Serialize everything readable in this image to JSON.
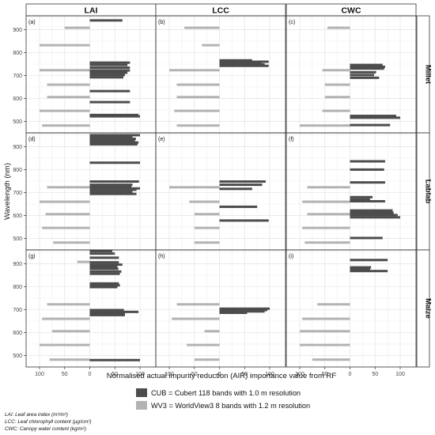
{
  "chart_data": {
    "type": "bar",
    "orientation": "horizontal",
    "xlabel": "Normalised actual impurity reduction (AIR) importance value from RF",
    "ylabel": "Wavelength (nm)",
    "columns": [
      "LAI",
      "LCC",
      "CWC"
    ],
    "rows": [
      "Millet",
      "Lablab",
      "Maize"
    ],
    "ylim": [
      450,
      960
    ],
    "yticks": [
      500,
      600,
      700,
      800,
      900
    ],
    "xticks_left": [
      "100",
      "50",
      "0"
    ],
    "xticks_right": [
      "50",
      "100"
    ],
    "panel_labels": [
      "(a)",
      "(b)",
      "(c)",
      "(d)",
      "(e)",
      "(f)",
      "(g)",
      "(h)",
      "(i)"
    ],
    "legend": [
      {
        "key": "cub",
        "label": "CUB = Cubert 118 bands with 1.0 m resolution",
        "color": "#4d4d4d"
      },
      {
        "key": "wv3",
        "label": "WV3 = WorldView3 8 bands with 1.2 m resolution",
        "color": "#b3b3b3"
      }
    ],
    "footnotes": [
      "LAI: Leaf area index (m²/m²)",
      "LCC: Leaf chlorophyll content (µg/cm²)",
      "CWC: Canopy water content (kg/m²)"
    ],
    "panels": [
      {
        "label": "(a)",
        "row": "Millet",
        "col": "LAI",
        "cub": [
          [
            522,
            100
          ],
          [
            528,
            97
          ],
          [
            584,
            80
          ],
          [
            632,
            80
          ],
          [
            692,
            67
          ],
          [
            702,
            70
          ],
          [
            712,
            75
          ],
          [
            722,
            80
          ],
          [
            734,
            80
          ],
          [
            746,
            75
          ],
          [
            756,
            80
          ],
          [
            940,
            65
          ]
        ],
        "wv3": [
          [
            482,
            95
          ],
          [
            546,
            100
          ],
          [
            606,
            85
          ],
          [
            660,
            85
          ],
          [
            723,
            100
          ],
          [
            832,
            100
          ],
          [
            908,
            50
          ]
        ]
      },
      {
        "label": "(b)",
        "row": "Millet",
        "col": "LCC",
        "cub": [
          [
            742,
            98
          ],
          [
            748,
            90
          ],
          [
            754,
            84
          ],
          [
            760,
            98
          ],
          [
            766,
            65
          ]
        ],
        "wv3": [
          [
            482,
            85
          ],
          [
            546,
            90
          ],
          [
            606,
            85
          ],
          [
            660,
            85
          ],
          [
            723,
            100
          ],
          [
            832,
            35
          ],
          [
            908,
            70
          ]
        ]
      },
      {
        "label": "(c)",
        "row": "Millet",
        "col": "CWC",
        "cub": [
          [
            484,
            80
          ],
          [
            516,
            100
          ],
          [
            524,
            92
          ],
          [
            690,
            58
          ],
          [
            702,
            48
          ],
          [
            714,
            52
          ],
          [
            730,
            68
          ],
          [
            738,
            70
          ],
          [
            746,
            65
          ]
        ],
        "wv3": [
          [
            482,
            100
          ],
          [
            546,
            55
          ],
          [
            606,
            50
          ],
          [
            660,
            50
          ],
          [
            723,
            55
          ],
          [
            908,
            45
          ]
        ]
      },
      {
        "label": "(d)",
        "row": "Lablab",
        "col": "LAI",
        "cub": [
          [
            694,
            93
          ],
          [
            702,
            85
          ],
          [
            712,
            93
          ],
          [
            718,
            100
          ],
          [
            726,
            83
          ],
          [
            734,
            85
          ],
          [
            748,
            98
          ],
          [
            830,
            100
          ],
          [
            910,
            95
          ],
          [
            918,
            97
          ],
          [
            926,
            90
          ],
          [
            934,
            92
          ],
          [
            942,
            85
          ],
          [
            950,
            100
          ]
        ],
        "wv3": [
          [
            482,
            73
          ],
          [
            546,
            95
          ],
          [
            606,
            88
          ],
          [
            660,
            100
          ],
          [
            723,
            85
          ]
        ]
      },
      {
        "label": "(e)",
        "row": "Lablab",
        "col": "LCC",
        "cub": [
          [
            578,
            98
          ],
          [
            638,
            75
          ],
          [
            716,
            65
          ],
          [
            734,
            85
          ],
          [
            748,
            92
          ]
        ],
        "wv3": [
          [
            482,
            50
          ],
          [
            546,
            50
          ],
          [
            606,
            50
          ],
          [
            660,
            60
          ],
          [
            723,
            100
          ]
        ]
      },
      {
        "label": "(f)",
        "row": "Lablab",
        "col": "CWC",
        "cub": [
          [
            502,
            65
          ],
          [
            592,
            100
          ],
          [
            602,
            95
          ],
          [
            612,
            87
          ],
          [
            622,
            85
          ],
          [
            662,
            70
          ],
          [
            670,
            40
          ],
          [
            680,
            45
          ],
          [
            744,
            70
          ],
          [
            800,
            68
          ],
          [
            836,
            70
          ]
        ],
        "wv3": [
          [
            482,
            90
          ],
          [
            546,
            95
          ],
          [
            606,
            85
          ],
          [
            660,
            95
          ],
          [
            723,
            85
          ]
        ]
      },
      {
        "label": "(g)",
        "row": "Maize",
        "col": "LAI",
        "cub": [
          [
            480,
            100
          ],
          [
            676,
            70
          ],
          [
            684,
            70
          ],
          [
            690,
            97
          ],
          [
            698,
            68
          ],
          [
            798,
            55
          ],
          [
            806,
            60
          ],
          [
            814,
            58
          ],
          [
            856,
            60
          ],
          [
            866,
            63
          ],
          [
            878,
            57
          ],
          [
            886,
            55
          ],
          [
            896,
            65
          ],
          [
            906,
            58
          ],
          [
            926,
            58
          ],
          [
            944,
            50
          ],
          [
            955,
            45
          ]
        ],
        "wv3": [
          [
            482,
            80
          ],
          [
            546,
            100
          ],
          [
            606,
            75
          ],
          [
            660,
            95
          ],
          [
            723,
            85
          ],
          [
            908,
            25
          ]
        ]
      },
      {
        "label": "(h)",
        "row": "Maize",
        "col": "LCC",
        "cub": [
          [
            686,
            55
          ],
          [
            692,
            90
          ],
          [
            698,
            95
          ],
          [
            704,
            100
          ]
        ],
        "wv3": [
          [
            482,
            50
          ],
          [
            546,
            65
          ],
          [
            606,
            30
          ],
          [
            660,
            95
          ],
          [
            723,
            85
          ]
        ]
      },
      {
        "label": "(i)",
        "row": "Maize",
        "col": "CWC",
        "cub": [
          [
            868,
            75
          ],
          [
            876,
            40
          ],
          [
            884,
            42
          ],
          [
            916,
            75
          ]
        ],
        "wv3": [
          [
            482,
            75
          ],
          [
            546,
            100
          ],
          [
            606,
            100
          ],
          [
            660,
            95
          ],
          [
            723,
            65
          ]
        ]
      }
    ]
  }
}
